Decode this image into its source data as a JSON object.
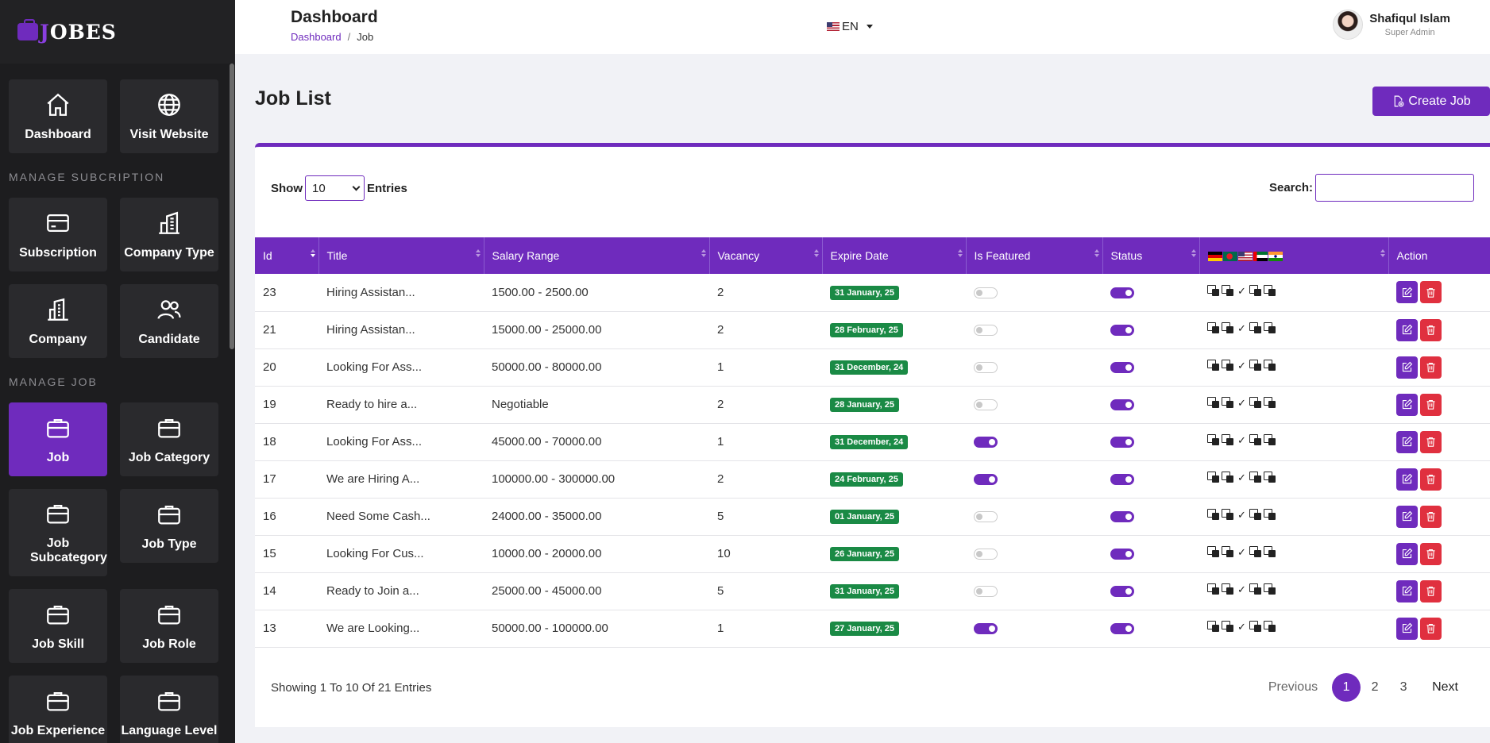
{
  "brand": {
    "first": "J",
    "rest": "OBES"
  },
  "sidebar": {
    "top_items": [
      {
        "label": "Dashboard",
        "icon": "home-icon"
      },
      {
        "label": "Visit Website",
        "icon": "globe-icon"
      }
    ],
    "sections": [
      {
        "title": "MANAGE SUBCRIPTION",
        "items": [
          {
            "label": "Subscription",
            "icon": "card-icon"
          },
          {
            "label": "Company Type",
            "icon": "buildings-icon"
          },
          {
            "label": "Company",
            "icon": "building-icon"
          },
          {
            "label": "Candidate",
            "icon": "users-icon"
          }
        ]
      },
      {
        "title": "MANAGE JOB",
        "items": [
          {
            "label": "Job",
            "icon": "briefcase-icon",
            "active": true
          },
          {
            "label": "Job Category",
            "icon": "briefcase-icon"
          },
          {
            "label": "Job Subcategory",
            "icon": "briefcase-icon"
          },
          {
            "label": "Job Type",
            "icon": "briefcase-icon"
          },
          {
            "label": "Job Skill",
            "icon": "briefcase-icon"
          },
          {
            "label": "Job Role",
            "icon": "briefcase-icon"
          },
          {
            "label": "Job Experience",
            "icon": "briefcase-icon"
          },
          {
            "label": "Language Level",
            "icon": "briefcase-icon"
          }
        ]
      }
    ]
  },
  "header": {
    "title": "Dashboard",
    "breadcrumb": {
      "parent": "Dashboard",
      "separator": "/",
      "current": "Job"
    },
    "language": "EN",
    "user": {
      "name": "Shafiqul Islam",
      "role": "Super Admin"
    }
  },
  "main": {
    "title": "Job List",
    "create_button": "Create Job",
    "show_label": "Show",
    "entries_value": "10",
    "entries_label": "Entries",
    "search_label": "Search:",
    "search_value": "",
    "columns": [
      "Id",
      "Title",
      "Salary Range",
      "Vacancy",
      "Expire Date",
      "Is Featured",
      "Status",
      "",
      "Action"
    ],
    "rows": [
      {
        "id": "23",
        "title": "Hiring Assistan...",
        "salary": "1500.00 - 2500.00",
        "vacancy": "2",
        "expire": "31 January, 25",
        "featured": false,
        "status": true
      },
      {
        "id": "21",
        "title": "Hiring Assistan...",
        "salary": "15000.00 - 25000.00",
        "vacancy": "2",
        "expire": "28 February, 25",
        "featured": false,
        "status": true
      },
      {
        "id": "20",
        "title": "Looking For Ass...",
        "salary": "50000.00 - 80000.00",
        "vacancy": "1",
        "expire": "31 December, 24",
        "featured": false,
        "status": true
      },
      {
        "id": "19",
        "title": "Ready to hire a...",
        "salary": "Negotiable",
        "vacancy": "2",
        "expire": "28 January, 25",
        "featured": false,
        "status": true
      },
      {
        "id": "18",
        "title": "Looking For Ass...",
        "salary": "45000.00 - 70000.00",
        "vacancy": "1",
        "expire": "31 December, 24",
        "featured": true,
        "status": true
      },
      {
        "id": "17",
        "title": "We are Hiring A...",
        "salary": "100000.00 - 300000.00",
        "vacancy": "2",
        "expire": "24 February, 25",
        "featured": true,
        "status": true
      },
      {
        "id": "16",
        "title": "Need Some Cash...",
        "salary": "24000.00 - 35000.00",
        "vacancy": "5",
        "expire": "01 January, 25",
        "featured": false,
        "status": true
      },
      {
        "id": "15",
        "title": "Looking For Cus...",
        "salary": "10000.00 - 20000.00",
        "vacancy": "10",
        "expire": "26 January, 25",
        "featured": false,
        "status": true
      },
      {
        "id": "14",
        "title": "Ready to Join a...",
        "salary": "25000.00 - 45000.00",
        "vacancy": "5",
        "expire": "31 January, 25",
        "featured": false,
        "status": true
      },
      {
        "id": "13",
        "title": "We are Looking...",
        "salary": "50000.00 - 100000.00",
        "vacancy": "1",
        "expire": "27 January, 25",
        "featured": true,
        "status": true
      }
    ],
    "translation_check": "✓",
    "showing_text": "Showing 1 To 10 Of 21 Entries",
    "pagination": {
      "previous": "Previous",
      "pages": [
        "1",
        "2",
        "3"
      ],
      "active": "1",
      "next": "Next"
    }
  },
  "colors": {
    "accent": "#6f2bbd",
    "badge": "#1a8a45",
    "danger": "#e0303f",
    "sidebar": "#1d1d1f"
  }
}
